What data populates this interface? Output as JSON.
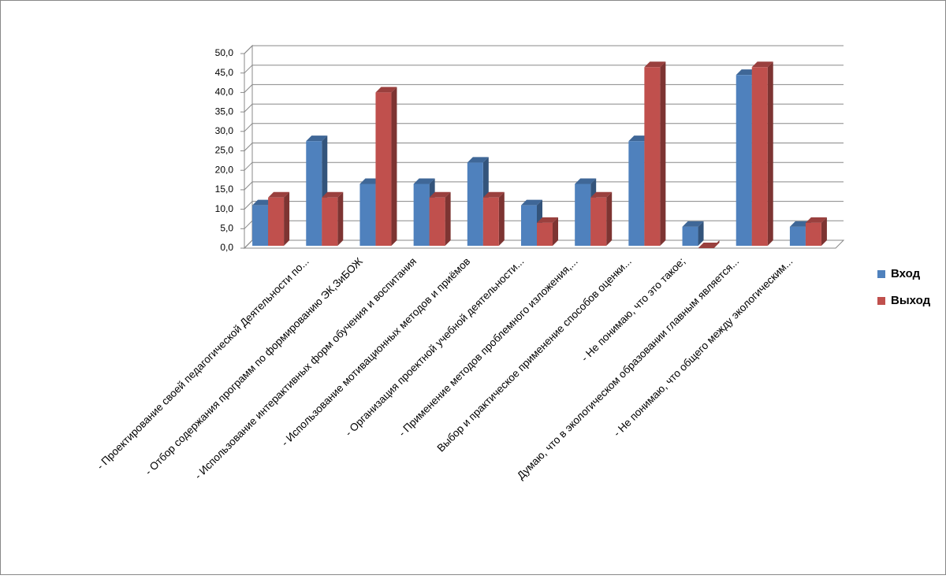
{
  "chart_data": {
    "type": "bar3d",
    "categories": [
      null,
      "- Проектирование своей педагогической Деятельности по...",
      "- Отбор содержания программ по формированию ЭК,ЗиБОЖ",
      "- Использование интерактивных форм обучения и воспитания",
      "- Использование мотивационных методов и приёмов",
      "- Организация проектной учебной деятельности...",
      "- Применение  методов проблемного изложения,...",
      "Выбор и практическое применение способов оценки...",
      "- Не понимаю, что это такое;",
      "Думаю, что в экологическом образовании главным является...",
      "- Не понимаю, что общего между экологическим..."
    ],
    "series": [
      {
        "name": "Вход",
        "color": "#4f81bd",
        "values": [
          11,
          27.5,
          16.5,
          16.5,
          22,
          11,
          16.5,
          27.5,
          5.5,
          44.5,
          5.5
        ]
      },
      {
        "name": "Выход",
        "color": "#c0504d",
        "values": [
          13,
          13,
          40,
          13,
          13,
          6.5,
          13,
          46.5,
          0,
          46.5,
          6.5
        ]
      }
    ],
    "ylim": [
      0,
      50
    ],
    "yticks": [
      {
        "value": 0,
        "label": "0,0"
      },
      {
        "value": 5,
        "label": "5,0"
      },
      {
        "value": 10,
        "label": "10,0"
      },
      {
        "value": 15,
        "label": "15,0"
      },
      {
        "value": 20,
        "label": "20,0"
      },
      {
        "value": 25,
        "label": "25,0"
      },
      {
        "value": 30,
        "label": "30,0"
      },
      {
        "value": 35,
        "label": "35,0"
      },
      {
        "value": 40,
        "label": "40,0"
      },
      {
        "value": 45,
        "label": "45,0"
      },
      {
        "value": 50,
        "label": "50,0"
      }
    ],
    "grid": true,
    "legend": "right"
  }
}
